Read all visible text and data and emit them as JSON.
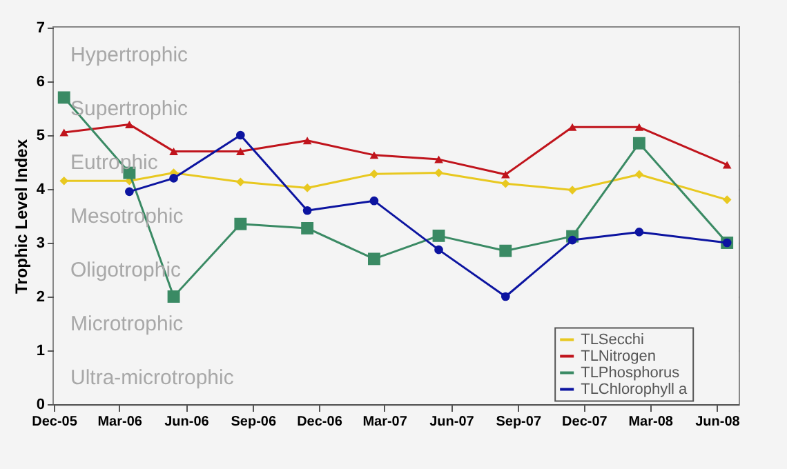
{
  "chart_data": {
    "type": "line",
    "ylabel": "Trophic Level Index",
    "x": [
      "2005-12-15",
      "2006-03-15",
      "2006-05-15",
      "2006-08-15",
      "2006-11-15",
      "2007-02-15",
      "2007-05-15",
      "2007-08-15",
      "2007-11-15",
      "2008-02-15",
      "2008-06-15"
    ],
    "series": [
      {
        "name": "TLSecchi",
        "color": "#e8c820",
        "marker": "diamond",
        "values": [
          4.15,
          4.15,
          4.3,
          4.13,
          4.02,
          4.28,
          4.3,
          4.1,
          3.98,
          4.27,
          3.8
        ]
      },
      {
        "name": "TLNitrogen",
        "color": "#c0141c",
        "marker": "triangle",
        "values": [
          5.05,
          5.2,
          4.7,
          4.7,
          4.9,
          4.63,
          4.55,
          4.27,
          5.15,
          5.15,
          4.45
        ]
      },
      {
        "name": "TLPhosphorus",
        "color": "#3a8a64",
        "marker": "square",
        "values": [
          5.7,
          4.3,
          2.0,
          3.35,
          3.27,
          2.7,
          3.13,
          2.85,
          3.12,
          4.85,
          3.0
        ]
      },
      {
        "name": "TLChlorophyll a",
        "color": "#0c14a0",
        "marker": "circle",
        "values": [
          null,
          3.95,
          4.2,
          5.0,
          3.6,
          3.78,
          2.87,
          2.0,
          3.05,
          3.2,
          3.0
        ]
      }
    ],
    "xlim": [
      "2005-12-01",
      "2008-07-01"
    ],
    "xticks": [
      {
        "value": "2005-12-01",
        "label": "Dec-05"
      },
      {
        "value": "2006-03-01",
        "label": "Mar-06"
      },
      {
        "value": "2006-06-01",
        "label": "Jun-06"
      },
      {
        "value": "2006-09-01",
        "label": "Sep-06"
      },
      {
        "value": "2006-12-01",
        "label": "Dec-06"
      },
      {
        "value": "2007-03-01",
        "label": "Mar-07"
      },
      {
        "value": "2007-06-01",
        "label": "Jun-07"
      },
      {
        "value": "2007-09-01",
        "label": "Sep-07"
      },
      {
        "value": "2007-12-01",
        "label": "Dec-07"
      },
      {
        "value": "2008-03-01",
        "label": "Mar-08"
      },
      {
        "value": "2008-06-01",
        "label": "Jun-08"
      }
    ],
    "ylim": [
      0,
      7
    ],
    "yticks": [
      0,
      1,
      2,
      3,
      4,
      5,
      6,
      7
    ],
    "bands": [
      {
        "axis": "y",
        "from": 6,
        "to": 7,
        "label": "Hypertrophic",
        "color": "#f4f4f4"
      },
      {
        "axis": "y",
        "from": 5,
        "to": 6,
        "label": "Supertrophic",
        "color": "#f4f4f4"
      },
      {
        "axis": "y",
        "from": 4,
        "to": 5,
        "label": "Eutrophic",
        "color": "#f4f4f4"
      },
      {
        "axis": "y",
        "from": 3,
        "to": 4,
        "label": "Mesotrophic",
        "color": "#f4f4f4"
      },
      {
        "axis": "y",
        "from": 2,
        "to": 3,
        "label": "Oligotrophic",
        "color": "#f4f4f4"
      },
      {
        "axis": "y",
        "from": 1,
        "to": 2,
        "label": "Microtrophic",
        "color": "#f4f4f4"
      },
      {
        "axis": "y",
        "from": 0,
        "to": 1,
        "label": "Ultra-microtrophic",
        "color": "#f4f4f4"
      }
    ],
    "grid": "y",
    "legend": "bottom right",
    "line_style": "solid"
  }
}
